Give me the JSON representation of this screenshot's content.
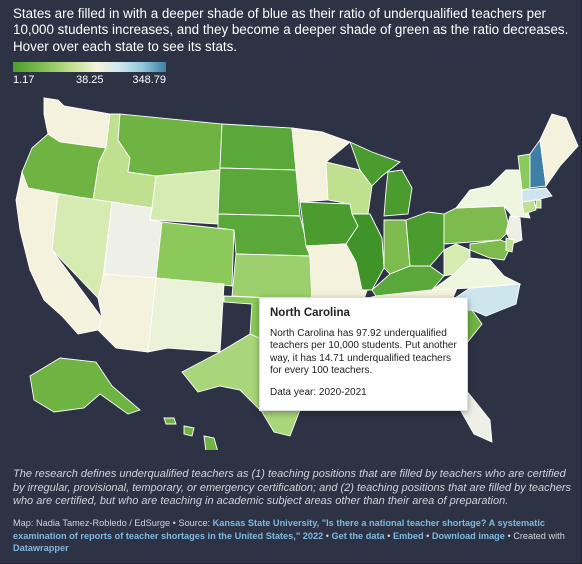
{
  "intro": "States are filled in with a deeper shade of blue as their ratio of underqualified teachers per 10,000 students increases, and they become a deeper shade of green as the ratio decreases. Hover over each state to see its stats.",
  "legend": {
    "min": "1.17",
    "mid": "38.25",
    "max": "348.79"
  },
  "colors": {
    "background": "#2d3345",
    "deep_green": "#4b9c2f",
    "mid_green": "#7dbb4f",
    "light_green": "#bfe08f",
    "pale": "#f4f2dc",
    "light_blue": "#cde6ee",
    "deep_blue": "#3e7fa6"
  },
  "tooltip": {
    "title": "North Carolina",
    "body": "North Carolina has 97.92 underqualified teachers per 10,000 students. Put another way, it has 14.71 underqualified teachers for every 100 teachers.",
    "year": "Data year: 2020-2021"
  },
  "footnote": "The research defines underqualified teachers as (1) teaching positions that are filled by teachers who are certified by irregular, provisional, temporary, or emergency certification; and (2) teaching positions that are filled by teachers who are certified, but who are teaching in academic subject areas other than their area of preparation.",
  "credits": {
    "prefix": "Map: Nadia Tamez-Robledo / EdSurge • Source: ",
    "source_link": "Kansas State University, \"Is there a national teacher shortage? A systematic examination of reports of teacher shortages in the United States,\" 2022",
    "sep1": " • ",
    "get_data": "Get the data",
    "sep2": " • ",
    "embed": "Embed",
    "sep3": " • ",
    "download": "Download image",
    "created": " • Created with ",
    "tool": "Datawrapper"
  }
}
